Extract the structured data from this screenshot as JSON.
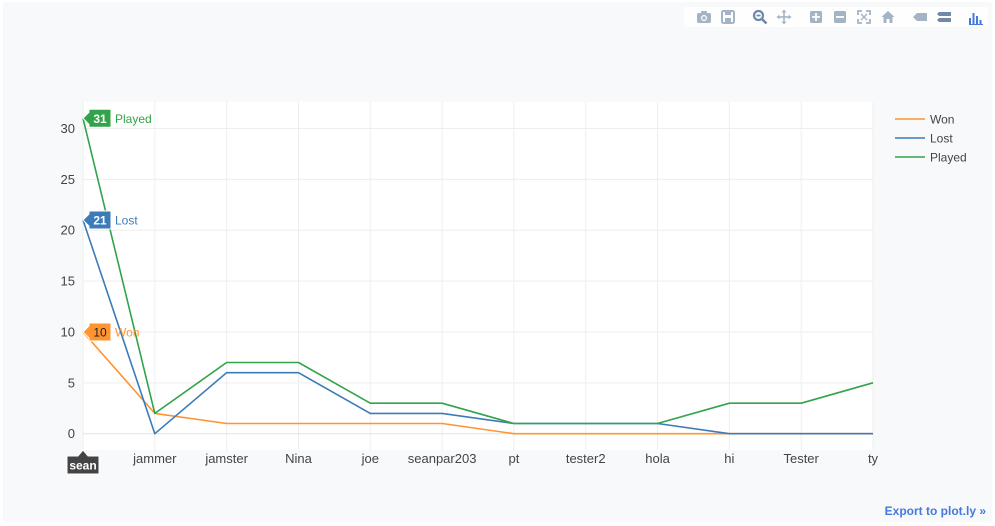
{
  "toolbar": {
    "buttons": [
      "camera-icon",
      "save-icon",
      "zoom-icon",
      "pan-icon",
      "zoom-in-icon",
      "zoom-out-icon",
      "autoscale-icon",
      "home-icon",
      "hover-closest-icon",
      "hover-compare-icon",
      "plotly-logo-icon"
    ],
    "icon_color": "#a4b4c4",
    "icon_active_color": "#6f8aa8"
  },
  "export_label": "Export to plot.ly »",
  "hover": {
    "x_label": "sean",
    "items": [
      {
        "value": "31",
        "name": "Played"
      },
      {
        "value": "21",
        "name": "Lost"
      },
      {
        "value": "10",
        "name": "Won"
      }
    ]
  },
  "legend": {
    "position": "top-right"
  },
  "chart_data": {
    "type": "line",
    "categories": [
      "sean",
      "jammer",
      "jamster",
      "Nina",
      "joe",
      "seanpar203",
      "pt",
      "tester2",
      "hola",
      "hi",
      "Tester",
      "ty"
    ],
    "series": [
      {
        "name": "Won",
        "color": "#ff9431",
        "values": [
          10,
          2,
          1,
          1,
          1,
          1,
          0,
          0,
          0,
          0,
          0,
          0
        ]
      },
      {
        "name": "Lost",
        "color": "#3d7bb8",
        "values": [
          21,
          0,
          6,
          6,
          2,
          2,
          1,
          1,
          1,
          0,
          0,
          0
        ]
      },
      {
        "name": "Played",
        "color": "#32a34a",
        "values": [
          31,
          2,
          7,
          7,
          3,
          3,
          1,
          1,
          1,
          3,
          3,
          5
        ]
      }
    ],
    "yticks": [
      0,
      5,
      10,
      15,
      20,
      25,
      30
    ],
    "ylim": [
      -1.6,
      32.6
    ],
    "grid": true
  }
}
